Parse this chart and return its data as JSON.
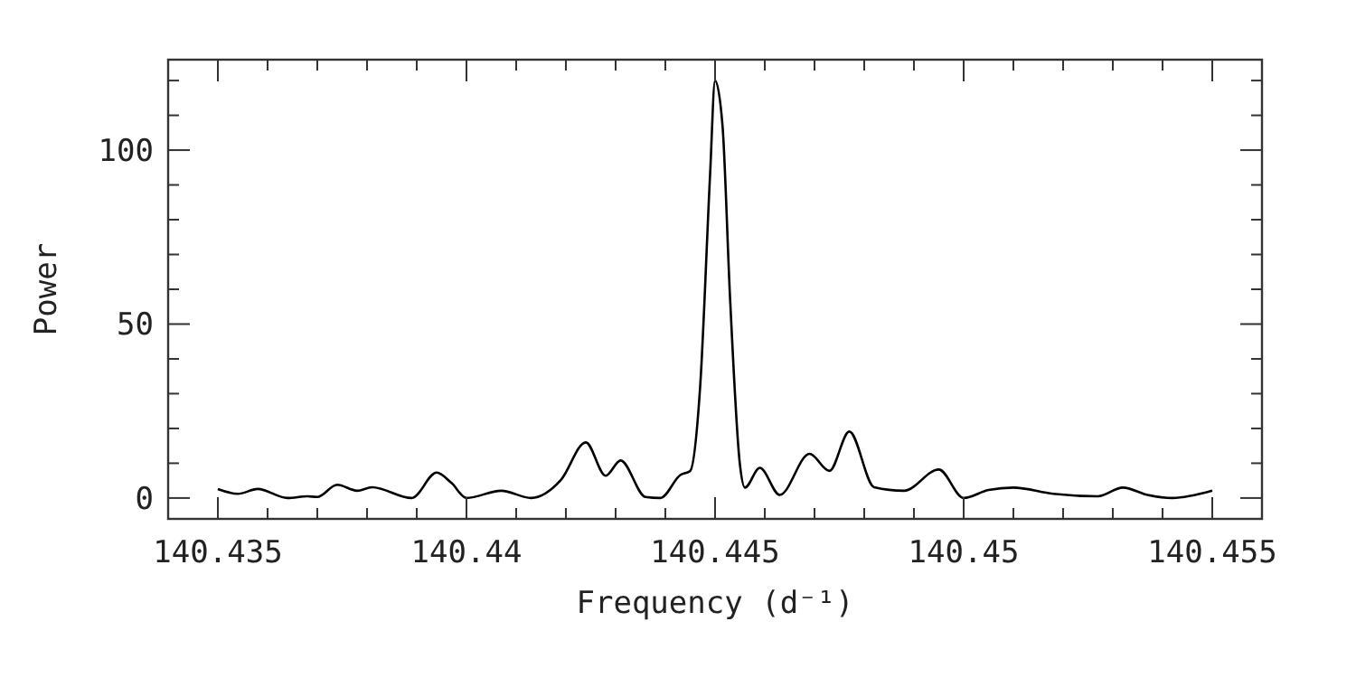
{
  "chart_data": {
    "type": "line",
    "xlabel": "Frequency (d⁻¹)",
    "ylabel": "Power",
    "xlim": [
      140.434,
      140.456
    ],
    "xticks": [
      {
        "value": 140.434,
        "label": null
      },
      140.435,
      {
        "value": 140.436,
        "label": null
      },
      {
        "value": 140.437,
        "label": null
      },
      {
        "value": 140.438,
        "label": null
      },
      {
        "value": 140.439,
        "label": null
      },
      140.44,
      {
        "value": 140.441,
        "label": null
      },
      {
        "value": 140.442,
        "label": null
      },
      {
        "value": 140.443,
        "label": null
      },
      {
        "value": 140.444,
        "label": null
      },
      140.445,
      {
        "value": 140.446,
        "label": null
      },
      {
        "value": 140.447,
        "label": null
      },
      {
        "value": 140.448,
        "label": null
      },
      {
        "value": 140.449,
        "label": null
      },
      140.45,
      {
        "value": 140.451,
        "label": null
      },
      {
        "value": 140.452,
        "label": null
      },
      {
        "value": 140.453,
        "label": null
      },
      {
        "value": 140.454,
        "label": null
      },
      140.455
    ],
    "ylim": [
      -6,
      126
    ],
    "yticks": [
      0,
      {
        "value": 10,
        "label": null
      },
      {
        "value": 20,
        "label": null
      },
      {
        "value": 30,
        "label": null
      },
      {
        "value": 40,
        "label": null
      },
      50,
      {
        "value": 60,
        "label": null
      },
      {
        "value": 70,
        "label": null
      },
      {
        "value": 80,
        "label": null
      },
      {
        "value": 90,
        "label": null
      },
      100,
      {
        "value": 110,
        "label": null
      },
      {
        "value": 120,
        "label": null
      }
    ],
    "grid": false,
    "marker": "none",
    "line_style": "solid",
    "series": [
      {
        "color": "#000000",
        "x": [
          140.435,
          140.4354,
          140.4358,
          140.4364,
          140.4368,
          140.437,
          140.4374,
          140.4378,
          140.4381,
          140.4389,
          140.4394,
          140.4397,
          140.44,
          140.4407,
          140.4413,
          140.4419,
          140.4424,
          140.4428,
          140.4431,
          140.4436,
          140.4439,
          140.4443,
          140.4445,
          140.4447,
          140.4449,
          140.445,
          140.44515,
          140.4453,
          140.4455,
          140.4456,
          140.4459,
          140.4463,
          140.4469,
          140.4473,
          140.4477,
          140.4482,
          140.4488,
          140.4495,
          140.45,
          140.4505,
          140.451,
          140.4518,
          140.4527,
          140.4532,
          140.4537,
          140.4542,
          140.455
        ],
        "values": [
          2.6,
          1.2,
          2.6,
          0,
          0.5,
          0.3,
          3.8,
          2.1,
          3.1,
          0,
          7.3,
          4.3,
          0,
          2.1,
          0,
          5.2,
          16,
          6.4,
          10.8,
          0.3,
          0,
          6.6,
          7.8,
          32,
          93,
          120,
          107,
          58,
          9.6,
          3,
          8.7,
          0.9,
          12.7,
          7.8,
          19.1,
          3.1,
          2.1,
          8.2,
          0,
          2.3,
          3,
          1.2,
          0.5,
          3,
          0.9,
          0,
          2.1
        ]
      }
    ]
  }
}
